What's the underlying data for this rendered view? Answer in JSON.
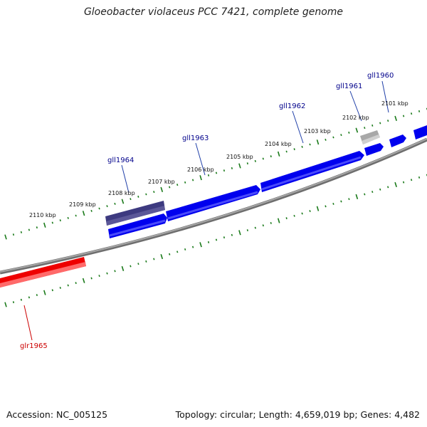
{
  "title": "Gloeobacter violaceus PCC 7421, complete genome",
  "footer": {
    "accession": "Accession: NC_005125",
    "topology": "Topology: circular; Length: 4,659,019 bp; Genes: 4,482"
  },
  "colors": {
    "backbone": "#808080",
    "ticks": "#1a7a1a",
    "forward_gene": "#0000ee",
    "highlight_gene": "#3d3a80",
    "reverse_gene": "#ee0000",
    "gray_gene": "#a8a8a8",
    "label_forward": "#00008b",
    "label_reverse": "#cc0000"
  },
  "ruler_labels": [
    {
      "text": "2101 kbp"
    },
    {
      "text": "2102 kbp"
    },
    {
      "text": "2103 kbp"
    },
    {
      "text": "2104 kbp"
    },
    {
      "text": "2105 kbp"
    },
    {
      "text": "2106 kbp"
    },
    {
      "text": "2107 kbp"
    },
    {
      "text": "2108 kbp"
    },
    {
      "text": "2109 kbp"
    },
    {
      "text": "2110 kbp"
    }
  ],
  "gene_labels": [
    {
      "text": "gll1960",
      "strand": "forward"
    },
    {
      "text": "gll1961",
      "strand": "forward"
    },
    {
      "text": "gll1962",
      "strand": "forward"
    },
    {
      "text": "gll1963",
      "strand": "forward"
    },
    {
      "text": "gll1964",
      "strand": "forward"
    },
    {
      "text": "glr1965",
      "strand": "reverse"
    }
  ]
}
